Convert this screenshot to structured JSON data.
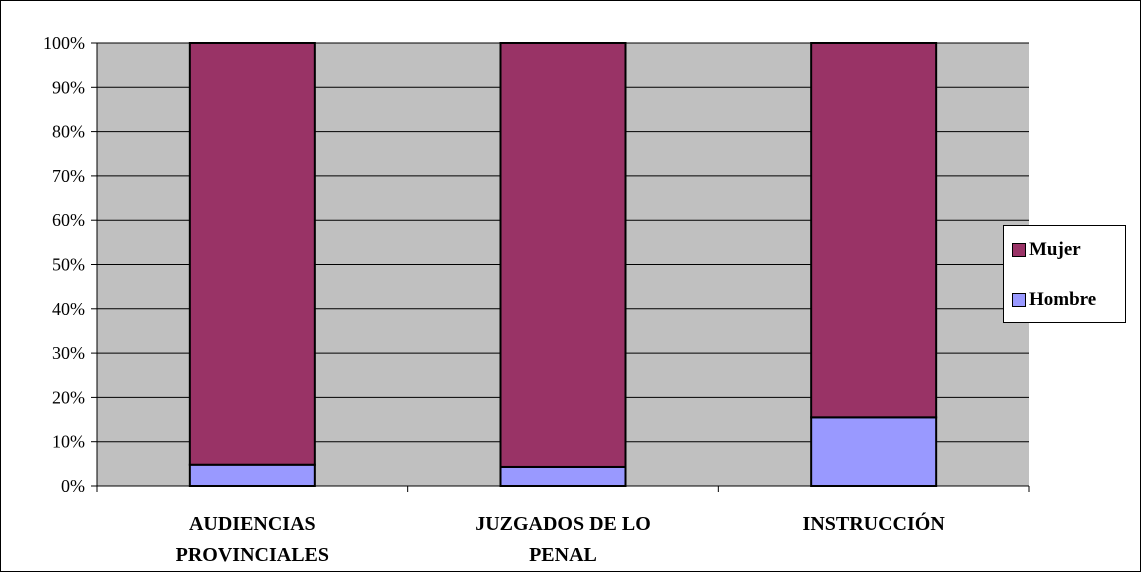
{
  "chart_data": {
    "type": "bar",
    "stacked": true,
    "percent": true,
    "categories": [
      [
        "AUDIENCIAS",
        "PROVINCIALES"
      ],
      [
        "JUZGADOS DE LO",
        "PENAL"
      ],
      [
        "INSTRUCCIÓN"
      ]
    ],
    "series": [
      {
        "name": "Hombre",
        "color": "#9999ff",
        "values": [
          4.8,
          4.3,
          15.5
        ]
      },
      {
        "name": "Mujer",
        "color": "#993366",
        "values": [
          95.2,
          95.7,
          84.5
        ]
      }
    ],
    "ylim": [
      0,
      100
    ],
    "yticks": [
      "0%",
      "10%",
      "20%",
      "30%",
      "40%",
      "50%",
      "60%",
      "70%",
      "80%",
      "90%",
      "100%"
    ],
    "grid": true,
    "plot_background": "#c0c0c0",
    "legend": {
      "placement": "right",
      "order": [
        "Mujer",
        "Hombre"
      ]
    }
  }
}
